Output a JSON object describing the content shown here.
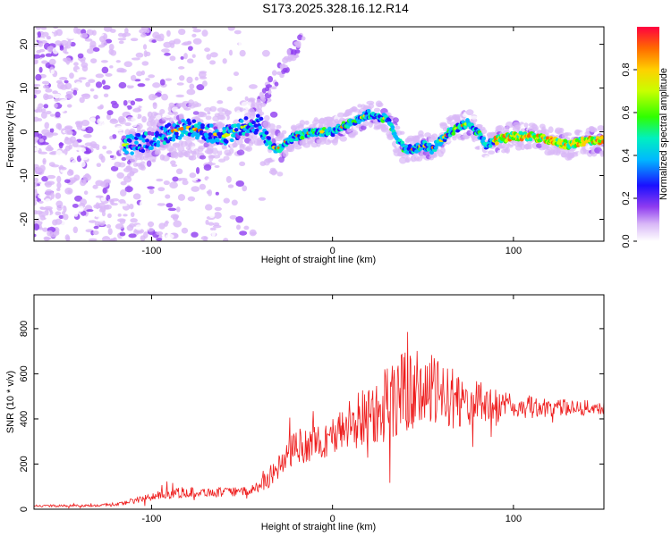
{
  "title": "S173.2025.328.16.12.R14",
  "chart_data": [
    {
      "type": "heatmap",
      "name": "spectrogram",
      "xlabel": "Height of straight line (km)",
      "ylabel": "Frequency (Hz)",
      "xlim": [
        -165,
        150
      ],
      "ylim": [
        -25,
        24
      ],
      "xticks": [
        -100,
        0,
        100
      ],
      "yticks": [
        -20,
        -10,
        0,
        10,
        20
      ],
      "colorbar": {
        "label": "Normalized spectral amplitude",
        "range": [
          0,
          1
        ],
        "ticks": [
          "0.0",
          "0.2",
          "0.4",
          "0.6",
          "0.8"
        ],
        "tick_values": [
          0,
          0.2,
          0.4,
          0.6,
          0.8
        ]
      },
      "ridge": {
        "x": [
          -112,
          -100,
          -90,
          -80,
          -70,
          -60,
          -50,
          -40,
          -35,
          -30,
          -25,
          -20,
          -10,
          0,
          10,
          20,
          30,
          35,
          40,
          45,
          50,
          55,
          60,
          65,
          70,
          75,
          80,
          85,
          90,
          100,
          110,
          120,
          130,
          140,
          148
        ],
        "freq": [
          -3,
          -2,
          0,
          1,
          0,
          -1,
          1,
          2,
          -3,
          -4,
          -2,
          -1,
          0,
          0,
          2,
          4,
          3,
          -1,
          -4,
          -4,
          -3,
          -4,
          -2,
          0,
          1,
          2,
          0,
          -3,
          -2,
          -1,
          -1,
          -2,
          -3,
          -2,
          -2
        ]
      }
    },
    {
      "type": "line",
      "name": "snr",
      "xlabel": "Height of straight line (km)",
      "ylabel": "SNR (10 * v/v)",
      "xlim": [
        -165,
        150
      ],
      "ylim": [
        0,
        950
      ],
      "xticks": [
        -100,
        0,
        100
      ],
      "yticks": [
        0,
        200,
        400,
        600,
        800
      ],
      "color": "#ee1c1c",
      "envelope": {
        "x": [
          -165,
          -140,
          -120,
          -100,
          -90,
          -80,
          -60,
          -45,
          -40,
          -35,
          -25,
          -20,
          -10,
          0,
          10,
          15,
          20,
          30,
          40,
          50,
          60,
          70,
          80,
          90,
          100,
          120,
          150
        ],
        "level": [
          15,
          15,
          20,
          55,
          70,
          75,
          75,
          80,
          110,
          140,
          230,
          280,
          290,
          320,
          380,
          390,
          430,
          470,
          520,
          530,
          510,
          480,
          470,
          460,
          450,
          450,
          450
        ],
        "spread": [
          10,
          10,
          15,
          35,
          45,
          45,
          40,
          40,
          70,
          90,
          140,
          160,
          160,
          170,
          230,
          280,
          300,
          350,
          380,
          350,
          300,
          250,
          200,
          160,
          110,
          80,
          60
        ]
      }
    }
  ],
  "colors": {
    "colormap": [
      "#ffffff",
      "#d9b8f7",
      "#8f3cf0",
      "#5b00e0",
      "#0018ff",
      "#00c8ff",
      "#00ff90",
      "#30ff00",
      "#d8ff00",
      "#ffd000",
      "#ff7a00",
      "#ff0000"
    ]
  }
}
